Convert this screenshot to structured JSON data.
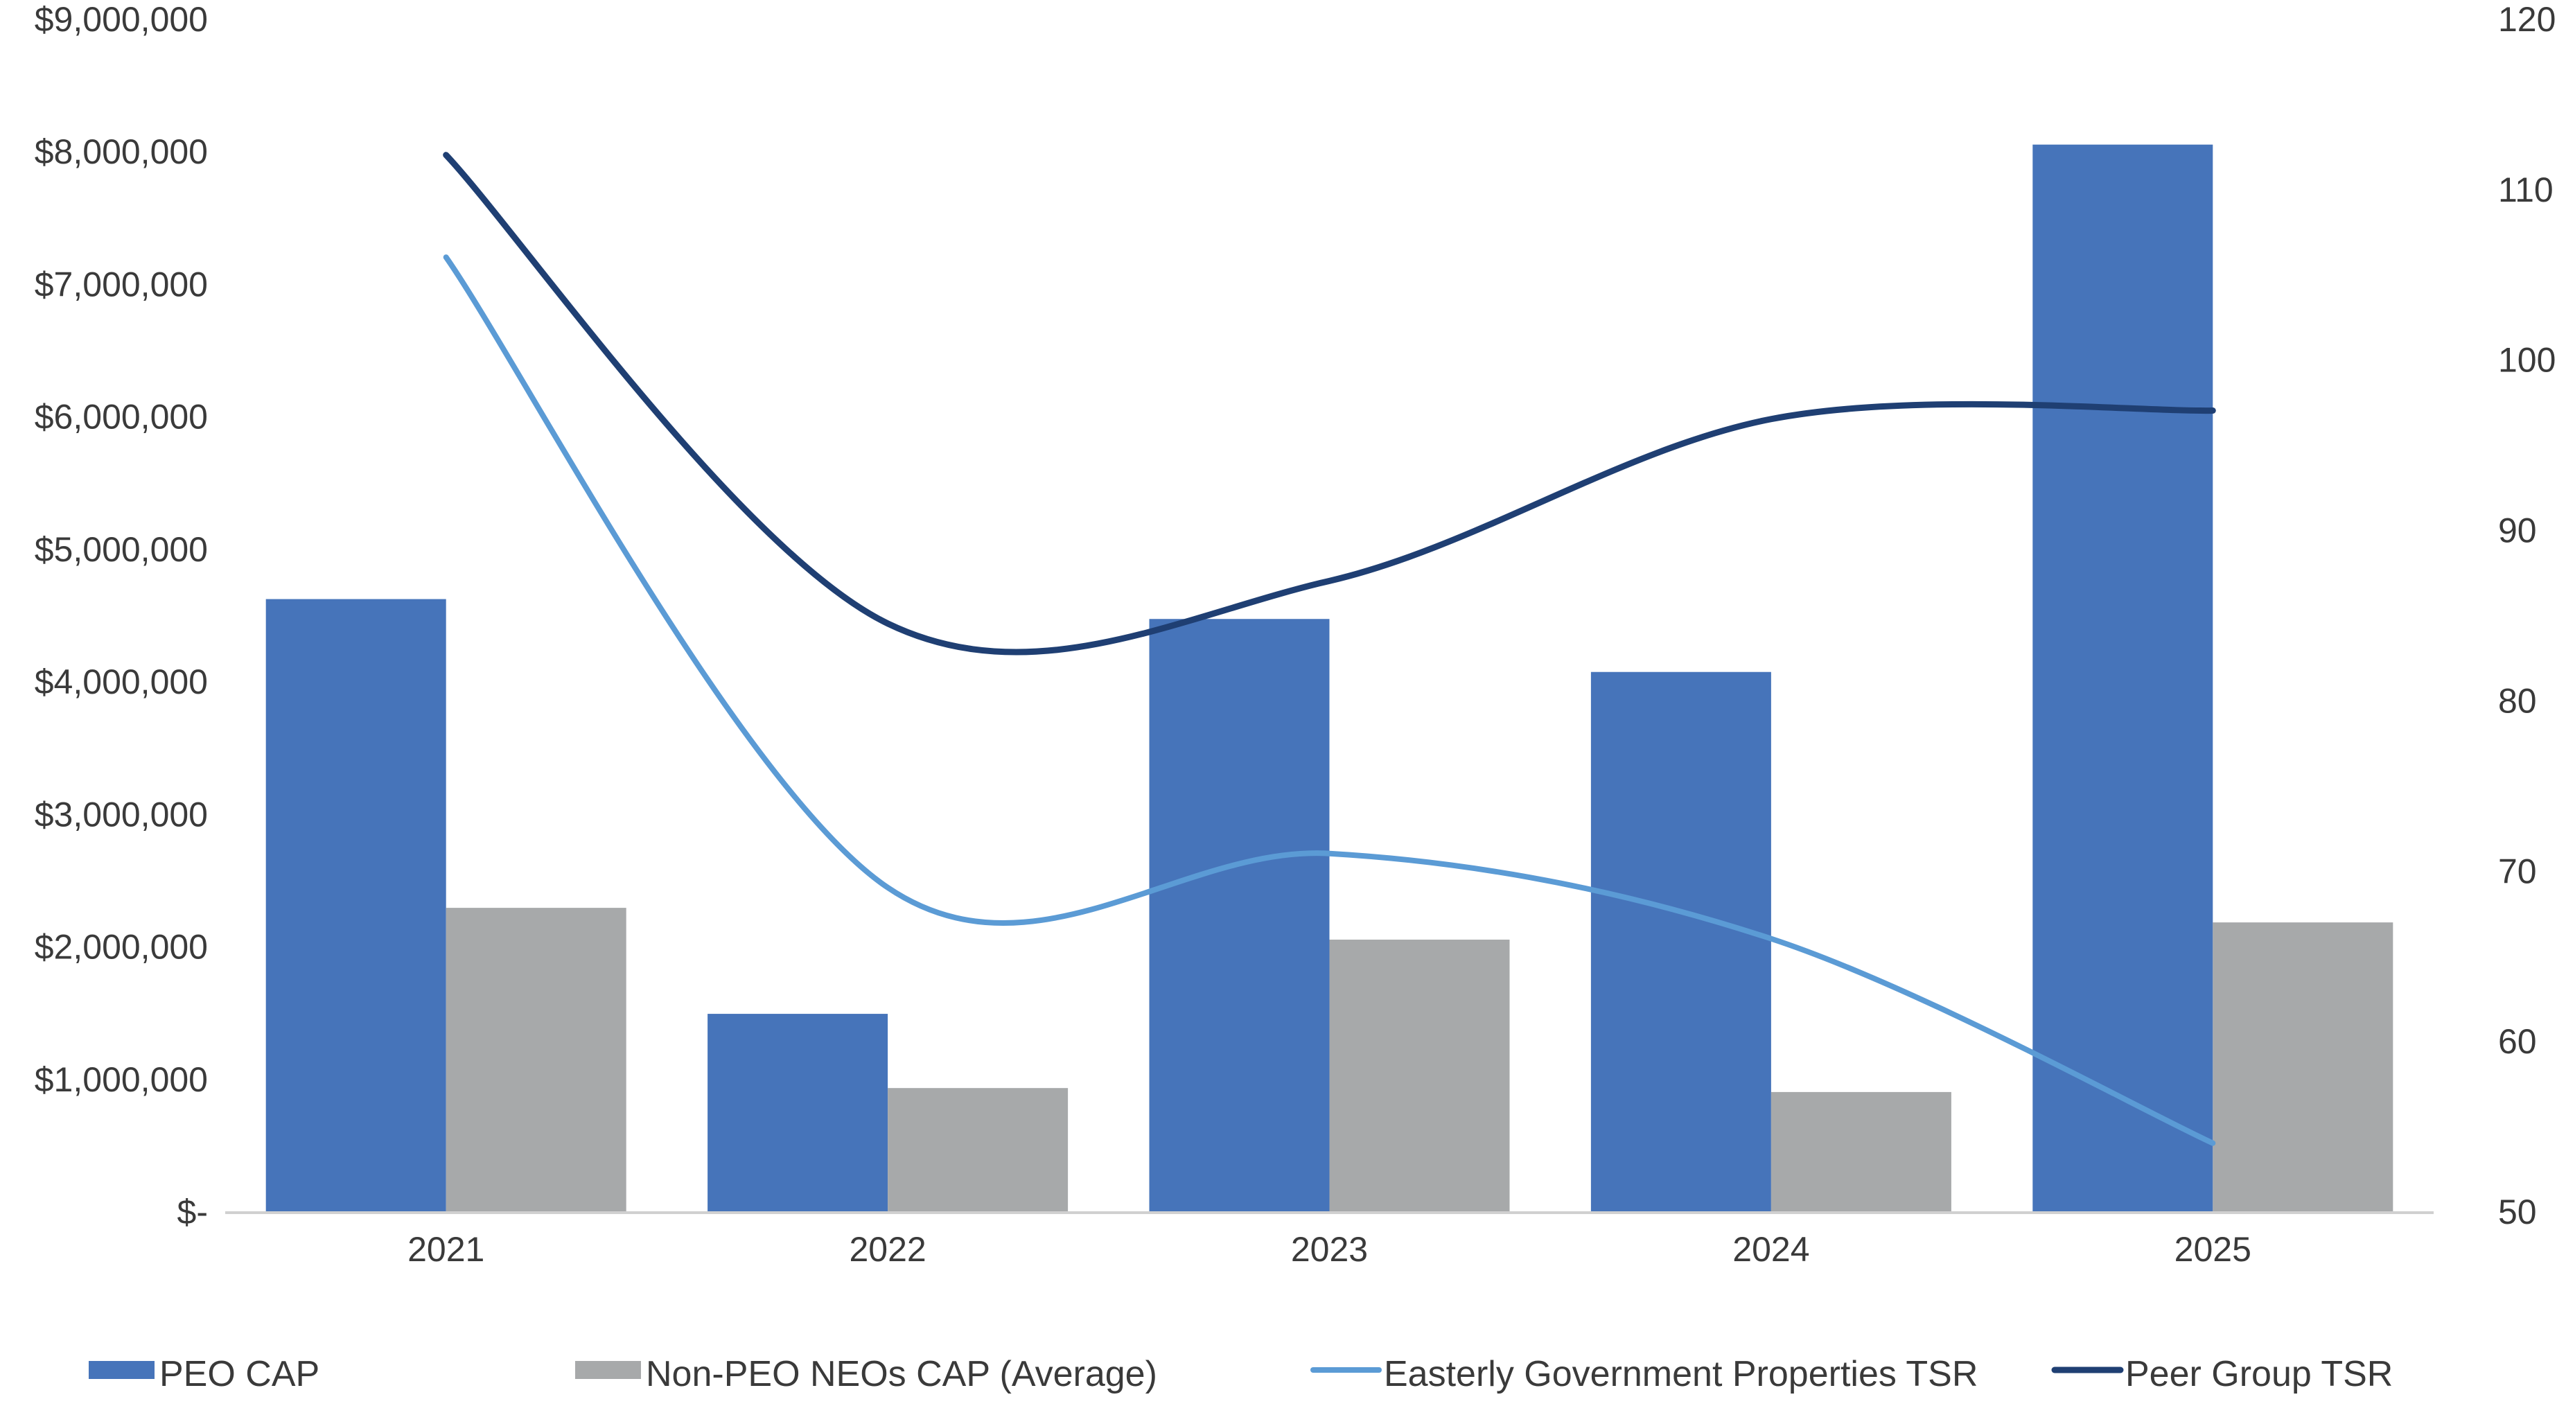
{
  "chart_data": {
    "type": "bar",
    "categories": [
      "2021",
      "2022",
      "2023",
      "2024",
      "2025"
    ],
    "series": [
      {
        "name": "PEO CAP",
        "kind": "bar",
        "axis": "left",
        "color": "#4674BA",
        "values": [
          4620000,
          1490000,
          4470000,
          4070000,
          8050000
        ]
      },
      {
        "name": "Non-PEO NEOs CAP (Average)",
        "kind": "bar",
        "axis": "left",
        "color": "#A7A9AA",
        "values": [
          2290000,
          930000,
          2050000,
          900000,
          2180000
        ]
      },
      {
        "name": "Easterly Government Properties TSR",
        "kind": "line",
        "axis": "right",
        "color": "#5B9BD5",
        "values": [
          106,
          69,
          71,
          66,
          54
        ]
      },
      {
        "name": "Peer Group TSR",
        "kind": "line",
        "axis": "right",
        "color": "#1F3F73",
        "values": [
          112,
          84.5,
          87,
          96.5,
          97
        ]
      }
    ],
    "y_left": {
      "range": [
        0,
        9000000
      ],
      "ticks": [
        0,
        1000000,
        2000000,
        3000000,
        4000000,
        5000000,
        6000000,
        7000000,
        8000000,
        9000000
      ],
      "tick_labels": [
        "$-",
        "$1,000,000",
        "$2,000,000",
        "$3,000,000",
        "$4,000,000",
        "$5,000,000",
        "$6,000,000",
        "$7,000,000",
        "$8,000,000",
        "$9,000,000"
      ]
    },
    "y_right": {
      "range": [
        50,
        120
      ],
      "ticks": [
        50,
        60,
        70,
        80,
        90,
        100,
        110,
        120
      ],
      "tick_labels": [
        "50",
        "60",
        "70",
        "80",
        "90",
        "100",
        "110",
        "120"
      ]
    },
    "title": "",
    "xlabel": "",
    "ylabel": "",
    "grid": false,
    "legend": "bottom"
  }
}
